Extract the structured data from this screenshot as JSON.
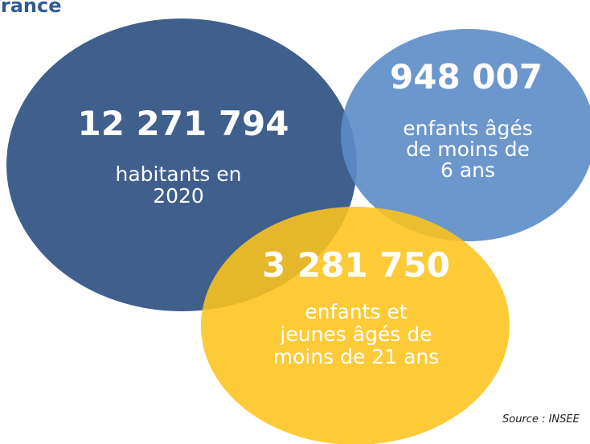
{
  "title": "France",
  "source": "Source : INSEE",
  "circles": [
    {
      "value": "12 271 794",
      "lines": [
        "habitants en",
        "2020"
      ]
    },
    {
      "value": "948 007",
      "lines": [
        "enfants âgés",
        "de moins de",
        "6 ans"
      ]
    },
    {
      "value": "3 281 750",
      "lines": [
        "enfants et",
        "jeunes âgés de",
        "moins de 21 ans"
      ]
    }
  ]
}
